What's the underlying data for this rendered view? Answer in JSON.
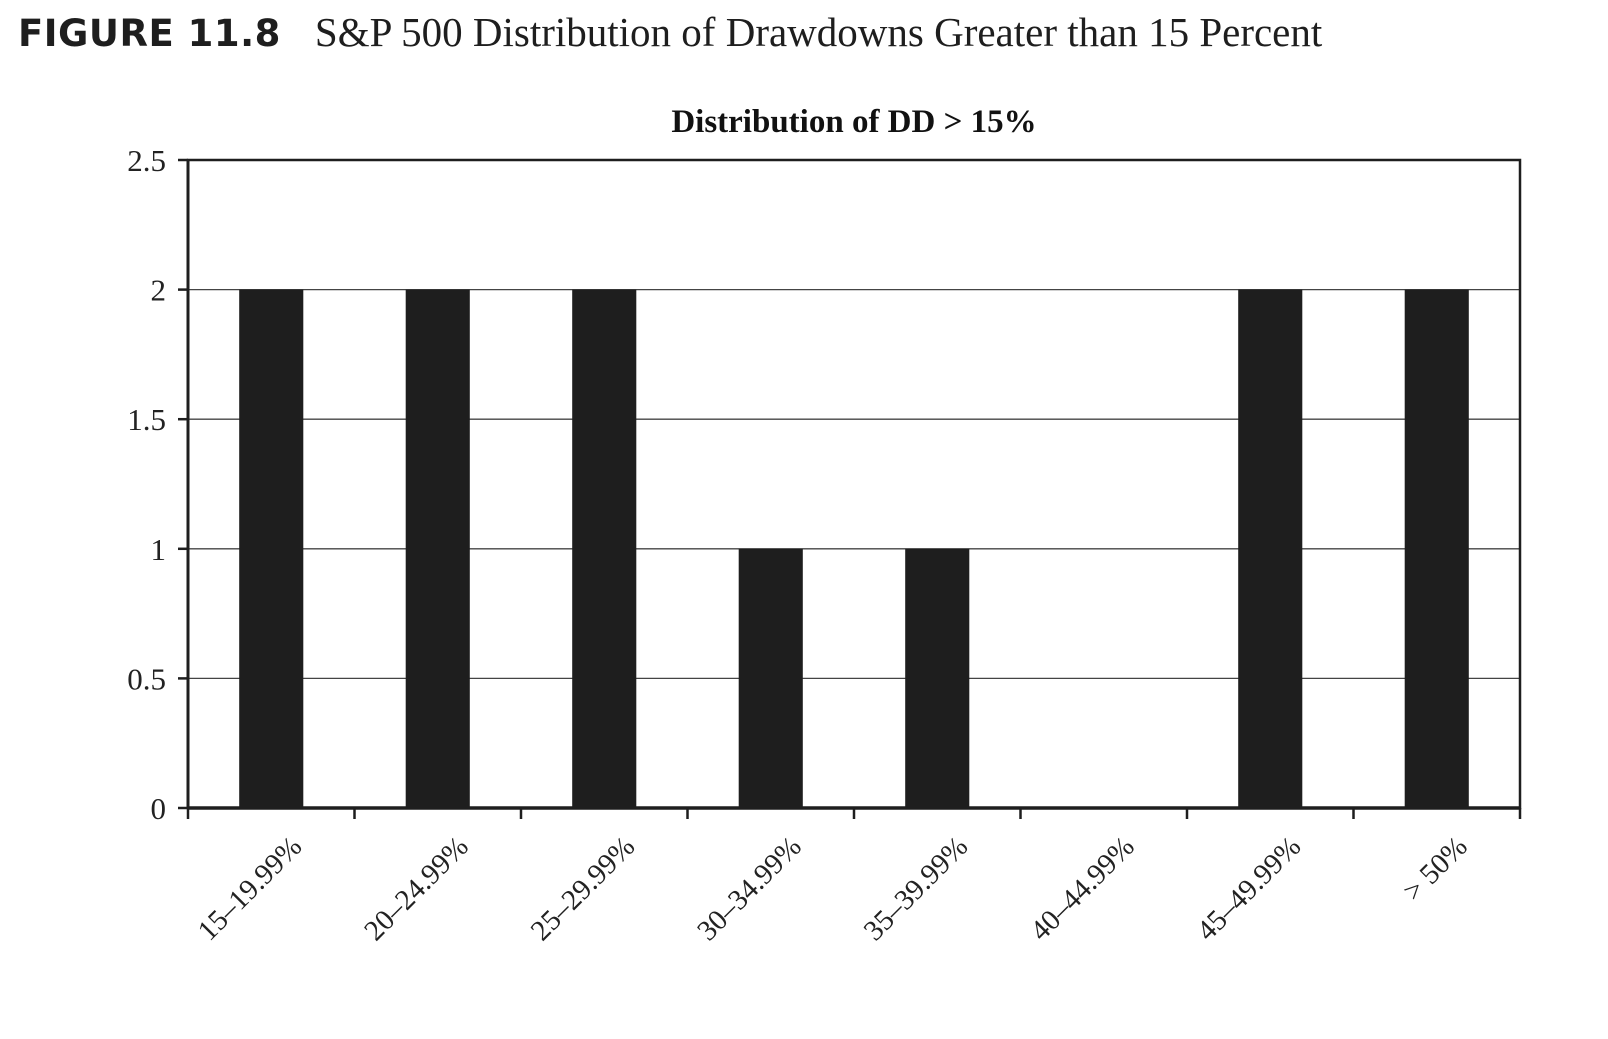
{
  "figure": {
    "label": "FIGURE 11.8",
    "caption": "S&P 500 Distribution of Drawdowns Greater than 15 Percent"
  },
  "chart_data": {
    "type": "bar",
    "title": "Distribution of DD > 15%",
    "categories": [
      "15–19.99%",
      "20–24.99%",
      "25–29.99%",
      "30–34.99%",
      "35–39.99%",
      "40–44.99%",
      "45–49.99%",
      "> 50%"
    ],
    "values": [
      2,
      2,
      2,
      1,
      1,
      0,
      2,
      2
    ],
    "ylim": [
      0,
      2.5
    ],
    "yticks": [
      0,
      0.5,
      1,
      1.5,
      2,
      2.5
    ],
    "ytick_labels": [
      "0",
      "0.5",
      "1",
      "1.5",
      "2",
      "2.5"
    ],
    "grid": true,
    "legend": "none",
    "bar_color": "#1e1e1e",
    "grid_color": "#444444"
  }
}
